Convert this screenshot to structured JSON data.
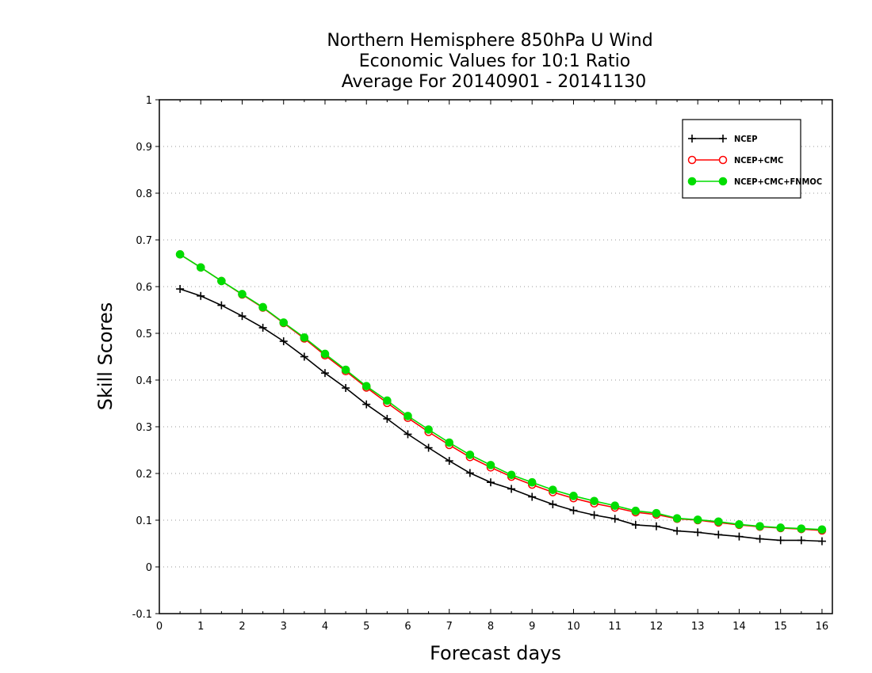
{
  "chart_data": {
    "type": "line",
    "title": [
      "Northern Hemisphere 850hPa U Wind",
      "Economic Values for 10:1 Ratio",
      "Average For 20140901 - 20141130"
    ],
    "xlabel": "Forecast days",
    "ylabel": "Skill Scores",
    "xlim": [
      0,
      16.25
    ],
    "ylim": [
      -0.1,
      1
    ],
    "xticks": [
      0,
      1,
      2,
      3,
      4,
      5,
      6,
      7,
      8,
      9,
      10,
      11,
      12,
      13,
      14,
      15,
      16
    ],
    "yticks": [
      -0.1,
      0,
      0.1,
      0.2,
      0.3,
      0.4,
      0.5,
      0.6,
      0.7,
      0.8,
      0.9,
      1
    ],
    "ytick_labels": [
      "-0.1",
      "0",
      "0.1",
      "0.2",
      "0.3",
      "0.4",
      "0.5",
      "0.6",
      "0.7",
      "0.8",
      "0.9",
      "1"
    ],
    "grid": "horizontal dotted",
    "legend_position": "top-right",
    "x": [
      0.5,
      1,
      1.5,
      2,
      2.5,
      3,
      3.5,
      4,
      4.5,
      5,
      5.5,
      6,
      6.5,
      7,
      7.5,
      8,
      8.5,
      9,
      9.5,
      10,
      10.5,
      11,
      11.5,
      12,
      12.5,
      13,
      13.5,
      14,
      14.5,
      15,
      15.5,
      16
    ],
    "series": [
      {
        "name": "NCEP",
        "color": "#000000",
        "marker": "plus",
        "values": [
          0.595,
          0.58,
          0.56,
          0.537,
          0.512,
          0.483,
          0.45,
          0.415,
          0.383,
          0.348,
          0.317,
          0.284,
          0.255,
          0.227,
          0.201,
          0.181,
          0.167,
          0.15,
          0.134,
          0.121,
          0.111,
          0.103,
          0.09,
          0.087,
          0.077,
          0.074,
          0.069,
          0.065,
          0.06,
          0.057,
          0.057,
          0.055
        ]
      },
      {
        "name": "NCEP+CMC",
        "color": "#ff0000",
        "marker": "open-circle",
        "values": [
          0.669,
          0.641,
          0.612,
          0.583,
          0.555,
          0.522,
          0.489,
          0.453,
          0.419,
          0.384,
          0.351,
          0.319,
          0.289,
          0.261,
          0.235,
          0.213,
          0.193,
          0.176,
          0.16,
          0.147,
          0.136,
          0.127,
          0.117,
          0.112,
          0.103,
          0.1,
          0.095,
          0.09,
          0.086,
          0.083,
          0.081,
          0.078
        ]
      },
      {
        "name": "NCEP+CMC+FNMOC",
        "color": "#00dd00",
        "marker": "filled-circle",
        "values": [
          0.669,
          0.641,
          0.612,
          0.584,
          0.556,
          0.523,
          0.491,
          0.456,
          0.422,
          0.387,
          0.356,
          0.323,
          0.294,
          0.266,
          0.24,
          0.218,
          0.197,
          0.181,
          0.165,
          0.152,
          0.141,
          0.131,
          0.12,
          0.115,
          0.104,
          0.101,
          0.097,
          0.091,
          0.087,
          0.084,
          0.082,
          0.08
        ]
      }
    ]
  }
}
